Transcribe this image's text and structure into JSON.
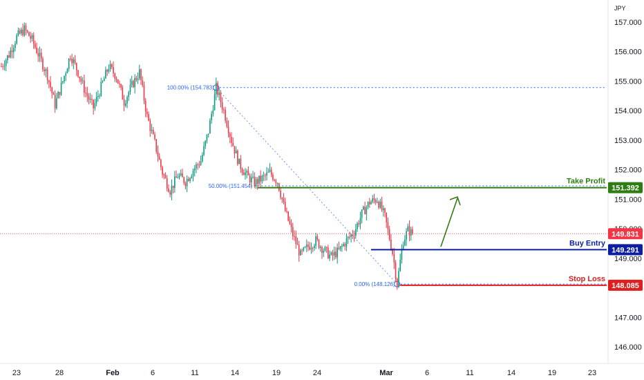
{
  "currency": "JPY",
  "colors": {
    "up": "#089981",
    "down": "#f23645",
    "fib": "#2962ff",
    "take_profit": "#2e7d12",
    "buy_entry": "#0d1fa0",
    "stop_loss": "#e01e1e",
    "last_price": "#f23645",
    "forecast_arrow": "#2e7d12"
  },
  "chart_data": {
    "type": "candlestick",
    "y_axis": {
      "ylim": [
        145.6,
        157.35
      ],
      "ticks": [
        {
          "value": 146.0,
          "label": "146.000"
        },
        {
          "value": 147.0,
          "label": "147.000"
        },
        {
          "value": 148.0,
          "label": "148.000"
        },
        {
          "value": 149.0,
          "label": "149.000"
        },
        {
          "value": 150.0,
          "label": "150.000"
        },
        {
          "value": 151.0,
          "label": "151.000"
        },
        {
          "value": 152.0,
          "label": "152.000"
        },
        {
          "value": 153.0,
          "label": "153.000"
        },
        {
          "value": 154.0,
          "label": "154.000"
        },
        {
          "value": 155.0,
          "label": "155.000"
        },
        {
          "value": 156.0,
          "label": "156.000"
        },
        {
          "value": 157.0,
          "label": "157.000"
        }
      ]
    },
    "x_axis": {
      "labels": [
        "23",
        "28",
        "Feb",
        "6",
        "11",
        "14",
        "19",
        "24",
        "Mar",
        "6",
        "11",
        "14",
        "19",
        "23"
      ]
    },
    "path": [
      [
        0,
        155.5
      ],
      [
        5,
        155.9
      ],
      [
        10,
        156.5
      ],
      [
        15,
        156.75
      ],
      [
        20,
        156.4
      ],
      [
        25,
        155.8
      ],
      [
        30,
        155.2
      ],
      [
        35,
        154.2
      ],
      [
        40,
        155.0
      ],
      [
        45,
        155.9
      ],
      [
        50,
        155.3
      ],
      [
        55,
        154.6
      ],
      [
        60,
        154.1
      ],
      [
        65,
        154.8
      ],
      [
        70,
        155.5
      ],
      [
        75,
        155.15
      ],
      [
        80,
        154.3
      ],
      [
        85,
        154.85
      ],
      [
        90,
        155.3
      ],
      [
        95,
        153.8
      ],
      [
        100,
        152.9
      ],
      [
        105,
        151.9
      ],
      [
        110,
        151.3
      ],
      [
        115,
        151.8
      ],
      [
        120,
        151.6
      ],
      [
        125,
        152.0
      ],
      [
        130,
        152.3
      ],
      [
        135,
        153.3
      ],
      [
        140,
        154.783
      ],
      [
        145,
        154.0
      ],
      [
        150,
        153.0
      ],
      [
        155,
        152.2
      ],
      [
        160,
        151.8
      ],
      [
        165,
        151.55
      ],
      [
        170,
        151.7
      ],
      [
        175,
        151.9
      ],
      [
        180,
        151.6
      ],
      [
        185,
        150.6
      ],
      [
        190,
        149.8
      ],
      [
        195,
        149.1
      ],
      [
        200,
        149.4
      ],
      [
        205,
        149.6
      ],
      [
        210,
        149.3
      ],
      [
        215,
        149.05
      ],
      [
        220,
        149.25
      ],
      [
        225,
        149.6
      ],
      [
        230,
        149.9
      ],
      [
        235,
        150.5
      ],
      [
        240,
        150.9
      ],
      [
        245,
        151.0
      ],
      [
        250,
        150.4
      ],
      [
        255,
        149.2
      ],
      [
        258,
        148.126
      ],
      [
        260,
        148.9
      ],
      [
        262,
        149.6
      ],
      [
        265,
        149.95
      ],
      [
        268,
        149.831
      ]
    ],
    "last_price": {
      "value": 149.831,
      "label": "149.831"
    },
    "fibonacci": {
      "levels": [
        {
          "value": 154.783,
          "label": "100.00% (154.783)"
        },
        {
          "value": 151.454,
          "label": "50.00% (151.454)"
        },
        {
          "value": 148.126,
          "label": "0.00% (148.126)"
        }
      ]
    },
    "trade_levels": [
      {
        "name": "take_profit",
        "title": "Take Profit",
        "value": 151.392,
        "label": "151.392"
      },
      {
        "name": "buy_entry",
        "title": "Buy Entry",
        "value": 149.291,
        "label": "149.291"
      },
      {
        "name": "stop_loss",
        "title": "Stop Loss",
        "value": 148.085,
        "label": "148.085"
      }
    ]
  }
}
